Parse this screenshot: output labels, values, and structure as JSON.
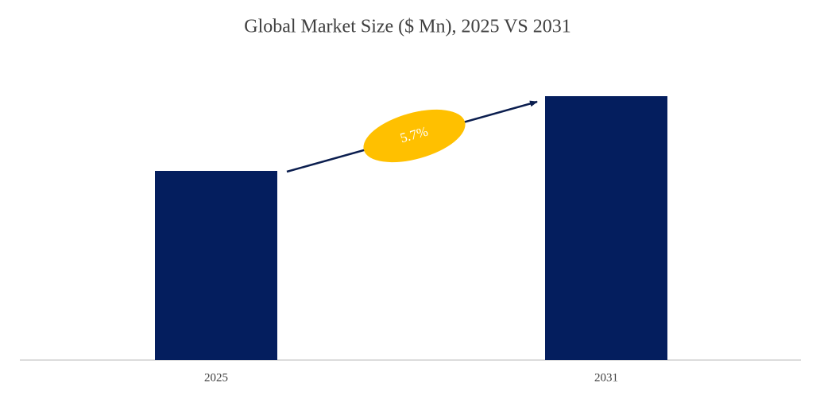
{
  "chart_data": {
    "type": "bar",
    "title": "Global Market Size ($ Mn), 2025 VS 2031",
    "categories": [
      "2025",
      "2031"
    ],
    "values": [
      238,
      332
    ],
    "color": "#041E5E",
    "ylim": [
      0,
      340
    ],
    "annotation": {
      "text": "5.7%",
      "color": "#FFC000"
    }
  }
}
